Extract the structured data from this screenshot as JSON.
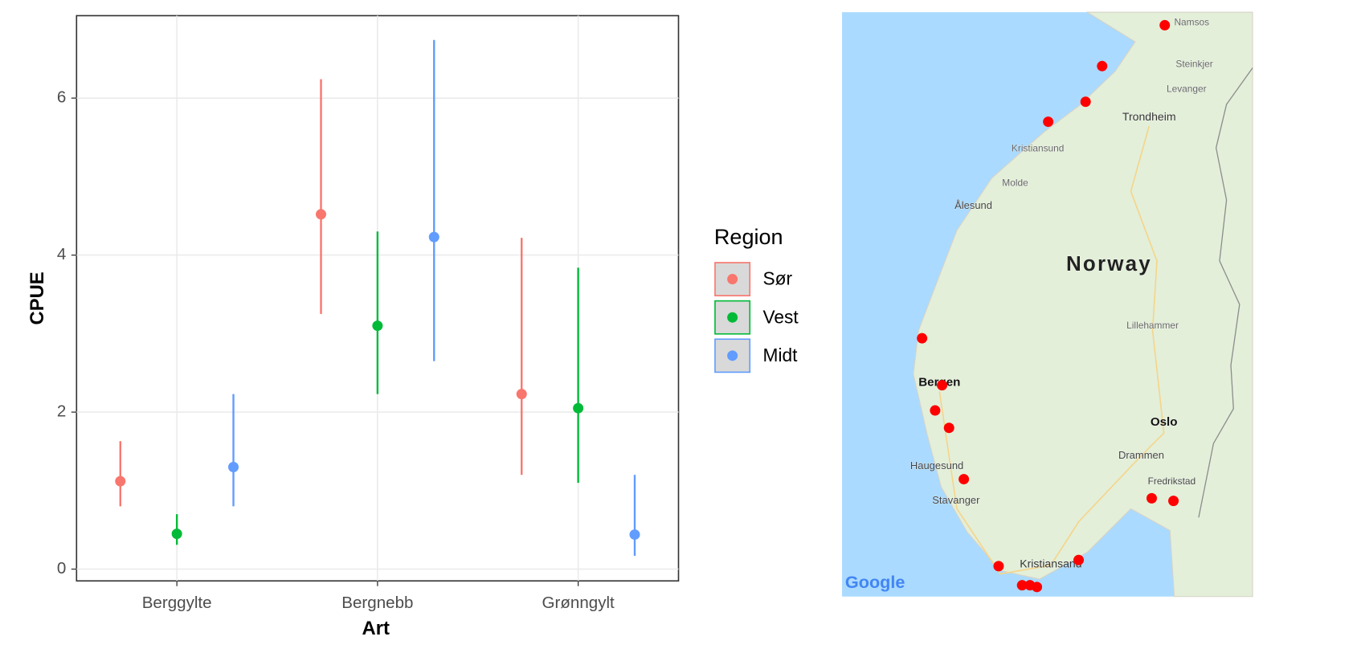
{
  "chart_data": {
    "type": "pointrange",
    "x_label": "Art",
    "y_label": "CPUE",
    "legend_title": "Region",
    "categories": [
      "Berggylte",
      "Bergnebb",
      "Grønngylt"
    ],
    "series": [
      {
        "name": "Sør",
        "color": "#F8766D",
        "values": [
          1.12,
          4.52,
          2.23
        ],
        "lower": [
          0.8,
          3.25,
          1.2
        ],
        "upper": [
          1.63,
          6.24,
          4.22
        ]
      },
      {
        "name": "Vest",
        "color": "#00BA38",
        "values": [
          0.45,
          3.1,
          2.05
        ],
        "lower": [
          0.31,
          2.23,
          1.1
        ],
        "upper": [
          0.7,
          4.3,
          3.84
        ]
      },
      {
        "name": "Midt",
        "color": "#619CFF",
        "values": [
          1.3,
          4.23,
          0.44
        ],
        "lower": [
          0.8,
          2.65,
          0.17
        ],
        "upper": [
          2.23,
          6.74,
          1.2
        ]
      }
    ],
    "ylim": [
      -0.15,
      7.05
    ],
    "yticks": [
      0,
      2,
      4,
      6
    ],
    "grid": true
  },
  "map": {
    "labels": [
      "Namsos",
      "Steinkjer",
      "Levanger",
      "Trondheim",
      "Kristiansund",
      "Molde",
      "Ålesund",
      "Norway",
      "Lillehammer",
      "Bergen",
      "Oslo",
      "Drammen",
      "Haugesund",
      "Fredrikstad",
      "Stavanger",
      "Kristiansand",
      "Google"
    ]
  }
}
